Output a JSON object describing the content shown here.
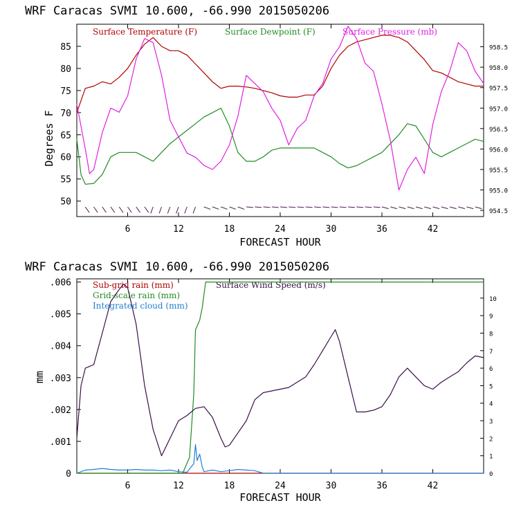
{
  "colors": {
    "temperature": "#b00000",
    "dewpoint": "#228b22",
    "pressure": "#e020e0",
    "wind": "#3a0e4a",
    "subgrid": "#b00000",
    "gridscale": "#228b22",
    "cloud": "#1e7fd0",
    "axis": "#000000"
  },
  "chart_data": [
    {
      "type": "line",
      "title": "WRF  Caracas SVMI  10.600, -66.990  2015050206",
      "xlabel": "FORECAST HOUR",
      "ylabel": "Degrees F",
      "xlim": [
        0,
        48
      ],
      "ylim": [
        46.5,
        90
      ],
      "xticks": [
        "6",
        "12",
        "18",
        "24",
        "30",
        "36",
        "42"
      ],
      "yticks_left": [
        "50",
        "55",
        "60",
        "65",
        "70",
        "75",
        "80",
        "85"
      ],
      "yticks_right": [
        "954.5",
        "955.0",
        "955.5",
        "956.0",
        "956.5",
        "957.0",
        "957.5",
        "958.0",
        "958.5"
      ],
      "right_ylim": [
        954.35,
        959.05
      ],
      "series": [
        {
          "name": "Surface Temperature (F)",
          "legend": "Surface Temperature (F)",
          "color_key": "temperature",
          "axis": "left",
          "x": [
            0,
            1,
            2,
            3,
            4,
            5,
            6,
            7,
            8,
            9,
            10,
            11,
            12,
            13,
            14,
            15,
            16,
            17,
            18,
            19,
            20,
            21,
            22,
            23,
            24,
            25,
            26,
            27,
            28,
            29,
            30,
            31,
            32,
            33,
            34,
            35,
            36,
            37,
            38,
            39,
            40,
            41,
            42,
            43,
            44,
            45,
            46,
            47,
            48
          ],
          "values": [
            70,
            75.5,
            76,
            77,
            76.5,
            78,
            80,
            83,
            85.5,
            87,
            85,
            84,
            84,
            83,
            81,
            79,
            77,
            75.5,
            76,
            76,
            75.8,
            75.5,
            75,
            74.5,
            73.8,
            73.5,
            73.5,
            74,
            74,
            76,
            80,
            83,
            85,
            86,
            86.5,
            87,
            87.5,
            87.5,
            87,
            86,
            84,
            82,
            79.5,
            79,
            78,
            77,
            76.5,
            76,
            76
          ]
        },
        {
          "name": "Surface Dewpoint (F)",
          "legend": "Surface Dewpoint (F)",
          "color_key": "dewpoint",
          "axis": "left",
          "x": [
            0,
            0.5,
            1,
            2,
            3,
            4,
            5,
            6,
            7,
            8,
            9,
            10,
            11,
            12,
            13,
            14,
            15,
            16,
            17,
            18,
            19,
            20,
            21,
            22,
            23,
            24,
            25,
            26,
            27,
            28,
            29,
            30,
            31,
            32,
            33,
            34,
            35,
            36,
            37,
            38,
            39,
            40,
            41,
            42,
            43,
            44,
            45,
            46,
            47,
            48
          ],
          "values": [
            64,
            56,
            53.8,
            54,
            56,
            60,
            61,
            61,
            61,
            60,
            59,
            61,
            63,
            64.5,
            66,
            67.5,
            69,
            70,
            71,
            67,
            61,
            59,
            59,
            60,
            61.5,
            62,
            62,
            62,
            62,
            62,
            61,
            60,
            58.5,
            57.5,
            58,
            59,
            60,
            61,
            63,
            65,
            67.5,
            67,
            64,
            61,
            60,
            61,
            62,
            63,
            64,
            63.5
          ]
        },
        {
          "name": "Surface Pressure (mb)",
          "legend": "Surface Pressure (mb)",
          "color_key": "pressure",
          "axis": "right",
          "x": [
            0,
            1,
            1.5,
            2,
            3,
            4,
            5,
            6,
            7,
            8,
            9,
            10,
            11,
            12,
            13,
            14,
            15,
            16,
            17,
            18,
            19,
            20,
            21,
            22,
            23,
            24,
            25,
            26,
            27,
            28,
            29,
            30,
            31,
            32,
            33,
            34,
            35,
            36,
            37,
            38,
            39,
            40,
            41,
            42,
            43,
            44,
            45,
            46,
            47,
            48
          ],
          "values": [
            957.1,
            956.0,
            955.4,
            955.5,
            956.4,
            957.0,
            956.9,
            957.3,
            958.2,
            958.7,
            958.6,
            957.8,
            956.7,
            956.3,
            955.9,
            955.8,
            955.6,
            955.5,
            955.7,
            956.1,
            956.8,
            957.8,
            957.6,
            957.4,
            957.0,
            956.7,
            956.1,
            956.5,
            956.7,
            957.3,
            957.6,
            958.2,
            958.5,
            959.0,
            958.7,
            958.1,
            957.9,
            957.1,
            956.2,
            955.0,
            955.5,
            955.8,
            955.4,
            956.6,
            957.4,
            957.9,
            958.6,
            958.4,
            957.9,
            957.6
          ]
        }
      ],
      "wind_barbs": "hourly wind barbs along the bottom of the panel"
    },
    {
      "type": "line",
      "title": "WRF  Caracas SVMI  10.600, -66.990  2015050206",
      "xlabel": "FORECAST HOUR",
      "ylabel": "mm",
      "xlim": [
        0,
        48
      ],
      "ylim": [
        0,
        0.0061
      ],
      "xticks": [
        "6",
        "12",
        "18",
        "24",
        "30",
        "36",
        "42"
      ],
      "yticks_left": [
        "0",
        ".001",
        ".002",
        ".003",
        ".004",
        ".005",
        ".006"
      ],
      "yticks_right": [
        "0",
        "1",
        "2",
        "3",
        "4",
        "5",
        "6",
        "7",
        "8",
        "9",
        "10"
      ],
      "right_ylim": [
        0,
        11.1
      ],
      "series": [
        {
          "name": "Sub-grid rain (mm)",
          "legend": "Sub-grid rain (mm)",
          "color_key": "subgrid",
          "axis": "left",
          "x": [
            0,
            48
          ],
          "values": [
            0,
            0
          ]
        },
        {
          "name": "Grid-scale rain (mm)",
          "legend": "Grid-scale rain (mm)",
          "color_key": "gridscale",
          "axis": "left",
          "x": [
            0,
            12.5,
            13.3,
            13.8,
            14.0,
            14.5,
            14.8,
            15.2,
            48
          ],
          "values": [
            0,
            0,
            0.0005,
            0.0025,
            0.0045,
            0.0048,
            0.0052,
            0.006,
            0.006
          ]
        },
        {
          "name": "Integrated cloud (mm)",
          "legend": "Integrated cloud (mm)",
          "color_key": "cloud",
          "axis": "left",
          "x": [
            0,
            1,
            2,
            3,
            4,
            5,
            6,
            7,
            8,
            9,
            10,
            11,
            12,
            13,
            13.5,
            13.8,
            14.0,
            14.2,
            14.5,
            14.8,
            15,
            16,
            17,
            18,
            19,
            20,
            21,
            22,
            48
          ],
          "values": [
            0,
            0.0001,
            0.00012,
            0.00015,
            0.00012,
            0.0001,
            0.0001,
            0.00012,
            0.0001,
            0.0001,
            8e-05,
            0.0001,
            5e-05,
            3e-05,
            0.0002,
            0.0003,
            0.0009,
            0.0004,
            0.0006,
            0.0002,
            5e-05,
            0.0001,
            5e-05,
            8e-05,
            0.00012,
            0.0001,
            8e-05,
            0,
            0
          ]
        },
        {
          "name": "Surface Wind Speed (m/s)",
          "legend": "Surface Wind Speed (m/s)",
          "color_key": "wind",
          "axis": "right",
          "x": [
            0,
            0.5,
            1,
            2,
            3,
            4,
            5,
            5.5,
            6,
            7,
            8,
            9,
            10,
            11,
            12,
            13,
            14,
            15,
            16,
            17,
            17.5,
            18,
            19,
            20,
            21,
            22,
            23,
            24,
            25,
            26,
            27,
            28,
            29,
            30,
            30.5,
            31,
            32,
            33,
            34,
            35,
            36,
            37,
            38,
            39,
            40,
            41,
            42,
            43,
            44,
            45,
            46,
            47,
            48
          ],
          "values": [
            2.0,
            5.0,
            6.0,
            6.2,
            8.0,
            9.8,
            10.5,
            10.8,
            10.6,
            8.5,
            5.0,
            2.5,
            1.0,
            2.0,
            3.0,
            3.3,
            3.7,
            3.8,
            3.2,
            2.0,
            1.5,
            1.6,
            2.3,
            3.0,
            4.2,
            4.6,
            4.7,
            4.8,
            4.9,
            5.2,
            5.5,
            6.2,
            7.0,
            7.8,
            8.2,
            7.5,
            5.5,
            3.5,
            3.5,
            3.6,
            3.8,
            4.5,
            5.5,
            6.0,
            5.5,
            5.0,
            4.8,
            5.2,
            5.5,
            5.8,
            6.3,
            6.7,
            6.6
          ]
        }
      ]
    }
  ]
}
